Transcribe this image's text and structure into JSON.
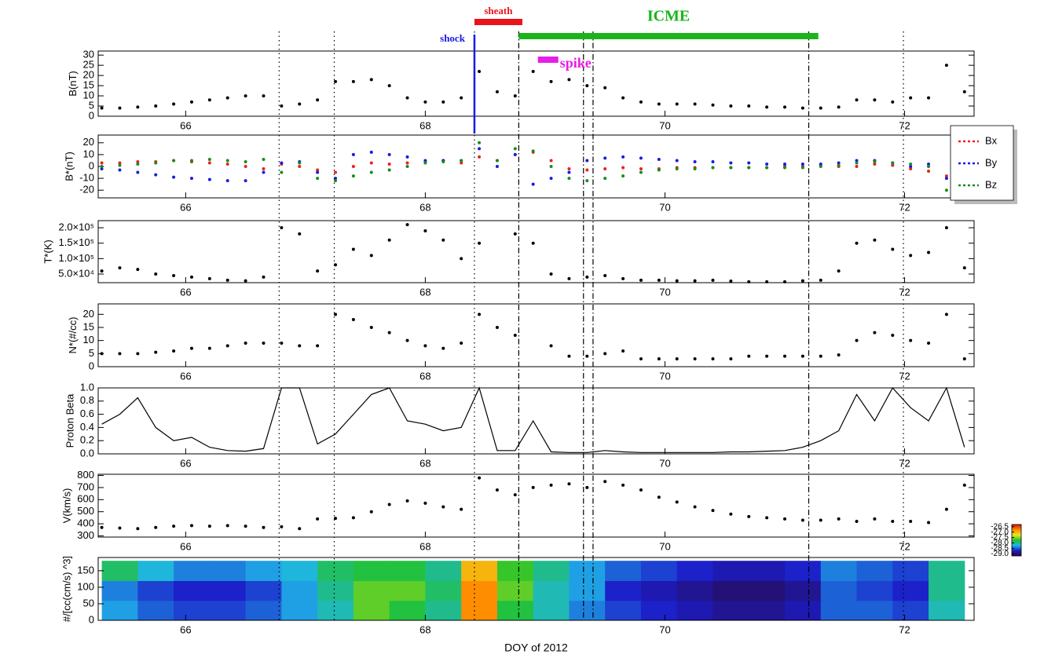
{
  "chart_data": [
    {
      "type": "scatter",
      "ylabel": "B(nT)",
      "color": "#000000",
      "xlim": [
        65.27,
        72.58
      ],
      "xticks": [
        66,
        68,
        70,
        72
      ],
      "ylim": [
        0,
        32
      ],
      "yticks": [
        0,
        5,
        10,
        15,
        20,
        25,
        30
      ],
      "x": [
        65.3,
        65.45,
        65.6,
        65.75,
        65.9,
        66.05,
        66.2,
        66.35,
        66.5,
        66.65,
        66.8,
        66.95,
        67.1,
        67.25,
        67.4,
        67.55,
        67.7,
        67.85,
        68.0,
        68.15,
        68.3,
        68.45,
        68.6,
        68.75,
        68.9,
        69.05,
        69.2,
        69.35,
        69.5,
        69.65,
        69.8,
        69.95,
        70.1,
        70.25,
        70.4,
        70.55,
        70.7,
        70.85,
        71.0,
        71.15,
        71.3,
        71.45,
        71.6,
        71.75,
        71.9,
        72.05,
        72.2,
        72.35,
        72.5
      ],
      "values": [
        4,
        4,
        4.5,
        5,
        6,
        7,
        8,
        9,
        10,
        10,
        5,
        6,
        8,
        17,
        17,
        18,
        15,
        9,
        7,
        7,
        9,
        22,
        12,
        10,
        22,
        17,
        18,
        15,
        14,
        9,
        7,
        6,
        6,
        6,
        5.5,
        5,
        5,
        4.5,
        4.5,
        4,
        4,
        4.5,
        8,
        8,
        7,
        9,
        9,
        25,
        12
      ]
    },
    {
      "type": "scatter",
      "ylabel": "B*(nT)",
      "legend": "right",
      "xlim": [
        65.27,
        72.58
      ],
      "xticks": [
        66,
        68,
        70,
        72
      ],
      "ylim": [
        -26.5,
        26.5
      ],
      "yticks": [
        -20,
        -10,
        0,
        10,
        20
      ],
      "x": [
        65.3,
        65.45,
        65.6,
        65.75,
        65.9,
        66.05,
        66.2,
        66.35,
        66.5,
        66.65,
        66.8,
        66.95,
        67.1,
        67.25,
        67.4,
        67.55,
        67.7,
        67.85,
        68.0,
        68.15,
        68.3,
        68.45,
        68.6,
        68.75,
        68.9,
        69.05,
        69.2,
        69.35,
        69.5,
        69.65,
        69.8,
        69.95,
        70.1,
        70.25,
        70.4,
        70.55,
        70.7,
        70.85,
        71.0,
        71.15,
        71.3,
        71.45,
        71.6,
        71.75,
        71.9,
        72.05,
        72.2,
        72.35,
        72.5
      ],
      "series": [
        {
          "name": "Bx",
          "color": "#e8231f",
          "values": [
            3,
            3,
            4,
            4,
            5,
            4,
            3,
            2,
            0,
            -2,
            2,
            0,
            -3,
            -5,
            0,
            3,
            2,
            3,
            4,
            5,
            3,
            8,
            5,
            10,
            12,
            5,
            -2,
            -3,
            -2,
            -1,
            -2,
            -2,
            -1,
            -1,
            -1,
            -1,
            -1,
            -1,
            0,
            0,
            1,
            0,
            0,
            2,
            1,
            -2,
            -4,
            -8,
            0
          ]
        },
        {
          "name": "By",
          "color": "#1a1ae6",
          "values": [
            -2,
            -3,
            -5,
            -7,
            -9,
            -10,
            -11,
            -12,
            -12,
            -5,
            3,
            4,
            -5,
            -10,
            10,
            12,
            10,
            8,
            5,
            5,
            5,
            15,
            0,
            10,
            -15,
            -10,
            -5,
            5,
            7,
            8,
            7,
            6,
            5,
            4,
            4,
            3,
            3,
            2,
            2,
            2,
            2,
            3,
            5,
            5,
            3,
            0,
            2,
            -10,
            5
          ]
        },
        {
          "name": "Bz",
          "color": "#1a8c1a",
          "values": [
            0,
            1,
            2,
            3,
            5,
            5,
            6,
            5,
            4,
            6,
            -5,
            3,
            -10,
            -12,
            -8,
            -5,
            -3,
            0,
            3,
            4,
            5,
            20,
            5,
            15,
            13,
            0,
            -10,
            -12,
            -10,
            -8,
            -5,
            -3,
            -2,
            -2,
            -1,
            -1,
            -1,
            -1,
            -1,
            -1,
            0,
            1,
            3,
            4,
            3,
            2,
            0,
            -20,
            3
          ]
        }
      ]
    },
    {
      "type": "scatter",
      "ylabel": "T*(K)",
      "color": "#000000",
      "xlim": [
        65.27,
        72.58
      ],
      "xticks": [
        66,
        68,
        70,
        72
      ],
      "ylim": [
        22000,
        223000
      ],
      "yticks": [
        {
          "value": 50000,
          "label": "5.0×10⁴"
        },
        {
          "value": 100000,
          "label": "1.0×10⁵"
        },
        {
          "value": 150000,
          "label": "1.5×10⁵"
        },
        {
          "value": 200000,
          "label": "2.0×10⁵"
        }
      ],
      "x": [
        65.3,
        65.45,
        65.6,
        65.75,
        65.9,
        66.05,
        66.2,
        66.35,
        66.5,
        66.65,
        66.8,
        66.95,
        67.1,
        67.25,
        67.4,
        67.55,
        67.7,
        67.85,
        68.0,
        68.15,
        68.3,
        68.45,
        68.6,
        68.75,
        68.9,
        69.05,
        69.2,
        69.35,
        69.5,
        69.65,
        69.8,
        69.95,
        70.1,
        70.25,
        70.4,
        70.55,
        70.7,
        70.85,
        71.0,
        71.15,
        71.3,
        71.45,
        71.6,
        71.75,
        71.9,
        72.05,
        72.2,
        72.35,
        72.5
      ],
      "values": [
        60000,
        70000,
        65000,
        50000,
        45000,
        40000,
        35000,
        30000,
        28000,
        40000,
        200000,
        180000,
        60000,
        80000,
        130000,
        110000,
        160000,
        210000,
        190000,
        160000,
        100000,
        150000,
        null,
        180000,
        150000,
        50000,
        35000,
        40000,
        45000,
        35000,
        30000,
        30000,
        28000,
        28000,
        30000,
        27000,
        25000,
        25000,
        25000,
        28000,
        30000,
        60000,
        150000,
        160000,
        130000,
        110000,
        120000,
        200000,
        70000
      ]
    },
    {
      "type": "scatter",
      "ylabel": "N*(#/cc)",
      "color": "#000000",
      "xlim": [
        65.27,
        72.58
      ],
      "xticks": [
        66,
        68,
        70,
        72
      ],
      "ylim": [
        0,
        24
      ],
      "yticks": [
        0,
        5,
        10,
        15,
        20
      ],
      "x": [
        65.3,
        65.45,
        65.6,
        65.75,
        65.9,
        66.05,
        66.2,
        66.35,
        66.5,
        66.65,
        66.8,
        66.95,
        67.1,
        67.25,
        67.4,
        67.55,
        67.7,
        67.85,
        68.0,
        68.15,
        68.3,
        68.45,
        68.6,
        68.75,
        68.9,
        69.05,
        69.2,
        69.35,
        69.5,
        69.65,
        69.8,
        69.95,
        70.1,
        70.25,
        70.4,
        70.55,
        70.7,
        70.85,
        71.0,
        71.15,
        71.3,
        71.45,
        71.6,
        71.75,
        71.9,
        72.05,
        72.2,
        72.35,
        72.5
      ],
      "values": [
        5,
        5,
        5,
        5.5,
        6,
        7,
        7,
        8,
        9,
        9,
        9,
        8,
        8,
        20,
        18,
        15,
        13,
        10,
        8,
        7,
        9,
        20,
        15,
        12,
        null,
        8,
        4,
        4,
        5,
        6,
        3,
        3,
        3,
        3,
        3,
        3,
        4,
        4,
        4,
        4,
        4,
        4.5,
        10,
        13,
        12,
        10,
        9,
        20,
        3
      ]
    },
    {
      "type": "line",
      "ylabel": "Proton Beta",
      "color": "#000000",
      "xlim": [
        65.27,
        72.58
      ],
      "xticks": [
        66,
        68,
        70,
        72
      ],
      "ylim": [
        0,
        1
      ],
      "yticks": [
        {
          "value": 0,
          "label": "0.0"
        },
        0.2,
        0.4,
        0.6,
        0.8,
        {
          "value": 1,
          "label": "1.0"
        }
      ],
      "x": [
        65.3,
        65.45,
        65.6,
        65.75,
        65.9,
        66.05,
        66.2,
        66.35,
        66.5,
        66.65,
        66.8,
        66.95,
        67.1,
        67.25,
        67.4,
        67.55,
        67.7,
        67.85,
        68.0,
        68.15,
        68.3,
        68.45,
        68.6,
        68.75,
        68.9,
        69.05,
        69.2,
        69.35,
        69.5,
        69.65,
        69.8,
        69.95,
        70.1,
        70.25,
        70.4,
        70.55,
        70.7,
        70.85,
        71.0,
        71.15,
        71.3,
        71.45,
        71.6,
        71.75,
        71.9,
        72.05,
        72.2,
        72.35,
        72.5
      ],
      "values": [
        0.45,
        0.6,
        0.85,
        0.4,
        0.2,
        0.25,
        0.1,
        0.05,
        0.04,
        0.08,
        1,
        1,
        0.15,
        0.3,
        0.6,
        0.9,
        1,
        0.5,
        0.45,
        0.35,
        0.4,
        1,
        0.05,
        0.05,
        0.5,
        0.03,
        0.02,
        0.02,
        0.05,
        0.03,
        0.02,
        0.02,
        0.02,
        0.02,
        0.02,
        0.03,
        0.03,
        0.04,
        0.05,
        0.1,
        0.2,
        0.35,
        0.9,
        0.5,
        1,
        0.7,
        0.5,
        1,
        0.1
      ]
    },
    {
      "type": "scatter",
      "ylabel": "V(km/s)",
      "color": "#000000",
      "xlim": [
        65.27,
        72.58
      ],
      "xticks": [
        66,
        68,
        70,
        72
      ],
      "ylim": [
        290,
        810
      ],
      "yticks": [
        300,
        400,
        500,
        600,
        700,
        800
      ],
      "x": [
        65.3,
        65.45,
        65.6,
        65.75,
        65.9,
        66.05,
        66.2,
        66.35,
        66.5,
        66.65,
        66.8,
        66.95,
        67.1,
        67.25,
        67.4,
        67.55,
        67.7,
        67.85,
        68.0,
        68.15,
        68.3,
        68.45,
        68.6,
        68.75,
        68.9,
        69.05,
        69.2,
        69.35,
        69.5,
        69.65,
        69.8,
        69.95,
        70.1,
        70.25,
        70.4,
        70.55,
        70.7,
        70.85,
        71.0,
        71.15,
        71.3,
        71.45,
        71.6,
        71.75,
        71.9,
        72.05,
        72.2,
        72.35,
        72.5
      ],
      "values": [
        370,
        365,
        360,
        370,
        380,
        385,
        380,
        385,
        380,
        370,
        375,
        360,
        440,
        445,
        450,
        500,
        560,
        590,
        570,
        540,
        520,
        780,
        680,
        640,
        700,
        720,
        730,
        700,
        750,
        720,
        680,
        620,
        580,
        540,
        510,
        480,
        460,
        450,
        440,
        430,
        430,
        440,
        420,
        440,
        420,
        420,
        410,
        520,
        720
      ]
    },
    {
      "type": "heatmap",
      "ylabel": "#/[cc(cm/s) ^3]",
      "xlabel": "DOY  of  2012",
      "xlim": [
        65.27,
        72.58
      ],
      "xticks": [
        66,
        68,
        70,
        72
      ],
      "ylim": [
        0,
        190
      ],
      "yticks": [
        0,
        50,
        100,
        150
      ],
      "x_edges": [
        65.3,
        65.6,
        65.9,
        66.2,
        66.5,
        66.8,
        67.1,
        67.4,
        67.7,
        68.0,
        68.3,
        68.6,
        68.9,
        69.2,
        69.5,
        69.8,
        70.1,
        70.4,
        70.7,
        71.0,
        71.3,
        71.6,
        71.9,
        72.2,
        72.5
      ],
      "y_edges": [
        0,
        60,
        120,
        180
      ],
      "z": [
        [
          -28.3,
          -28.5,
          -28.6,
          -28.6,
          -28.5,
          -28.3,
          -28.1,
          -27.6,
          -27.8,
          -28.0,
          -26.8,
          -27.8,
          -28.1,
          -28.4,
          -28.6,
          -28.7,
          -28.8,
          -28.9,
          -28.9,
          -28.8,
          -28.5,
          -28.5,
          -28.6,
          -28.1
        ],
        [
          -28.4,
          -28.6,
          -28.7,
          -28.7,
          -28.6,
          -28.3,
          -28.0,
          -27.6,
          -27.6,
          -27.9,
          -26.8,
          -27.6,
          -28.1,
          -28.3,
          -28.7,
          -28.8,
          -28.9,
          -29.0,
          -29.0,
          -28.9,
          -28.5,
          -28.6,
          -28.7,
          -28.0
        ],
        [
          -27.9,
          -28.2,
          -28.4,
          -28.4,
          -28.3,
          -28.2,
          -27.9,
          -27.8,
          -27.8,
          -28.0,
          -27.0,
          -27.7,
          -28.0,
          -28.3,
          -28.5,
          -28.6,
          -28.7,
          -28.8,
          -28.8,
          -28.7,
          -28.4,
          -28.5,
          -28.6,
          -28.0
        ]
      ],
      "zlim": [
        -29.2,
        -26.3
      ],
      "zticks": [
        -26.5,
        {
          "value": -27,
          "label": "-27.0"
        },
        -27.5,
        {
          "value": -28,
          "label": "-28.0"
        },
        -28.5,
        {
          "value": -29,
          "label": "-29.0"
        }
      ],
      "colormap": [
        "#2a0a3a",
        "#1c1cc8",
        "#1fb5e8",
        "#22c22b",
        "#e8e820",
        "#ff8a00",
        "#e01010"
      ]
    }
  ],
  "event_lines": [
    {
      "x": 66.78,
      "style": "dotted"
    },
    {
      "x": 67.24,
      "style": "dotted"
    },
    {
      "x": 68.41,
      "style": "dotted"
    },
    {
      "x": 68.78,
      "style": "dashdot"
    },
    {
      "x": 69.32,
      "style": "dashdot"
    },
    {
      "x": 69.4,
      "style": "dashdot"
    },
    {
      "x": 71.2,
      "style": "dashdot"
    },
    {
      "x": 71.99,
      "style": "dotted"
    }
  ],
  "intervals": [
    {
      "label": "sheath",
      "start": 68.41,
      "end": 68.81,
      "color": "#e8141b"
    },
    {
      "label": "ICME",
      "start": 68.78,
      "end": 71.28,
      "color": "#1ab41a"
    },
    {
      "label": "spike",
      "start": 68.94,
      "end": 69.11,
      "color": "#e61ee6"
    }
  ],
  "shock": {
    "label": "shock",
    "x": 68.41,
    "color": "#1a1ae6"
  }
}
